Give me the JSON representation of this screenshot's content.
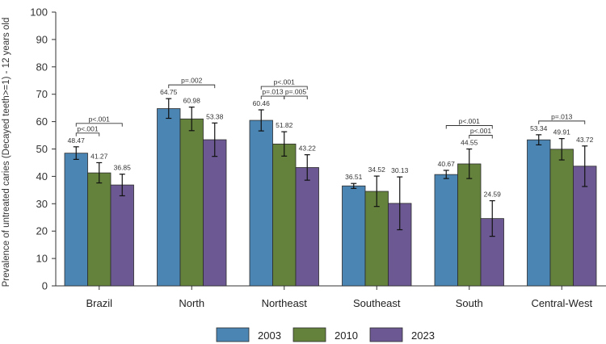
{
  "chart_data": {
    "type": "bar",
    "title": "",
    "xlabel": "",
    "ylabel": "Prevalence of untreated caries (Decayed teeth>=1) - 12 years old",
    "ylim": [
      0,
      100
    ],
    "yticks": [
      0,
      10,
      20,
      30,
      40,
      50,
      60,
      70,
      80,
      90,
      100
    ],
    "grid": false,
    "legend_position": "bottom-center",
    "categories": [
      "Brazil",
      "North",
      "Northeast",
      "Southeast",
      "South",
      "Central-West"
    ],
    "series": [
      {
        "name": "2003",
        "color": "#4a85b4",
        "values": [
          48.47,
          64.75,
          60.46,
          36.51,
          40.67,
          53.34
        ],
        "error_low": [
          46.2,
          61.2,
          56.6,
          35.6,
          39.2,
          51.5
        ],
        "error_high": [
          50.8,
          68.4,
          64.3,
          37.4,
          42.2,
          55.2
        ],
        "value_labels": [
          "48.47",
          "64.75",
          "60.46",
          "36.51",
          "40.67",
          "53.34"
        ]
      },
      {
        "name": "2010",
        "color": "#64823c",
        "values": [
          41.27,
          60.98,
          51.82,
          34.52,
          44.55,
          49.91
        ],
        "error_low": [
          37.6,
          56.7,
          47.4,
          29.0,
          39.2,
          46.0
        ],
        "error_high": [
          45.0,
          65.3,
          56.3,
          40.1,
          50.0,
          53.8
        ],
        "value_labels": [
          "41.27",
          "60.98",
          "51.82",
          "34.52",
          "44.55",
          "49.91"
        ]
      },
      {
        "name": "2023",
        "color": "#6c5993",
        "values": [
          36.85,
          53.38,
          43.22,
          30.13,
          24.59,
          43.72
        ],
        "error_low": [
          32.9,
          47.3,
          38.6,
          20.5,
          18.1,
          36.3
        ],
        "error_high": [
          40.8,
          59.5,
          47.9,
          39.8,
          31.1,
          51.1
        ],
        "value_labels": [
          "36.85",
          "53.38",
          "43.22",
          "30.13",
          "24.59",
          "43.72"
        ]
      }
    ],
    "annotations": [
      {
        "category": "Brazil",
        "from_series": "2003",
        "to_series": "2010",
        "text": "p<.001",
        "level": 1
      },
      {
        "category": "Brazil",
        "from_series": "2003",
        "to_series": "2023",
        "text": "p<.001",
        "level": 2
      },
      {
        "category": "North",
        "from_series": "2003",
        "to_series": "2023",
        "text": "p=.002",
        "level": 1
      },
      {
        "category": "Northeast",
        "from_series": "2003",
        "to_series": "2010",
        "text": "p=.013",
        "level": 1
      },
      {
        "category": "Northeast",
        "from_series": "2010",
        "to_series": "2023",
        "text": "p=.005",
        "level": 1
      },
      {
        "category": "Northeast",
        "from_series": "2003",
        "to_series": "2023",
        "text": "p<.001",
        "level": 2
      },
      {
        "category": "South",
        "from_series": "2010",
        "to_series": "2023",
        "text": "p<.001",
        "level": 1
      },
      {
        "category": "South",
        "from_series": "2003",
        "to_series": "2023",
        "text": "p<.001",
        "level": 2
      },
      {
        "category": "Central-West",
        "from_series": "2003",
        "to_series": "2023",
        "text": "p=.013",
        "level": 1
      }
    ]
  }
}
